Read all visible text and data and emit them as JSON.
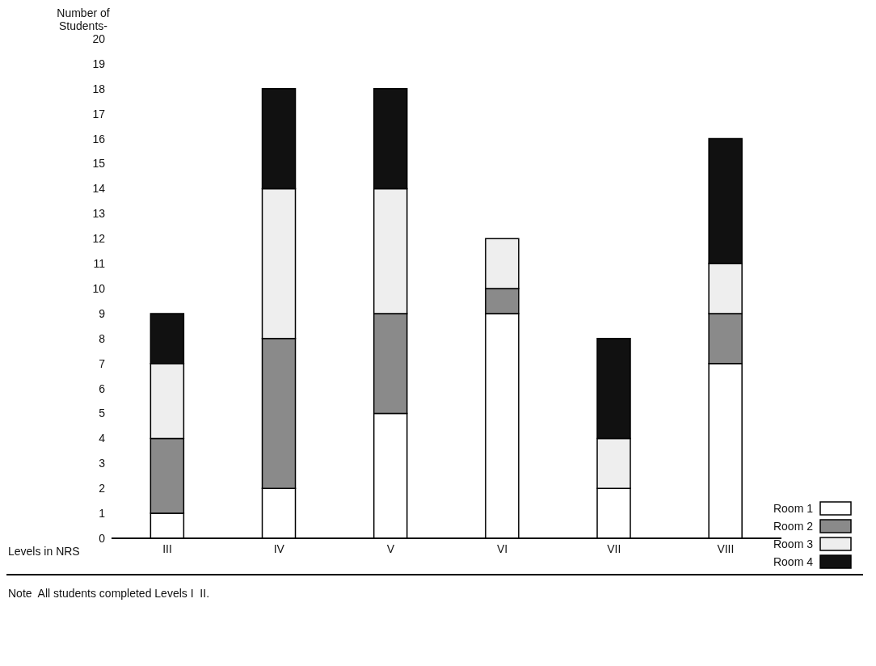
{
  "chart_data": {
    "type": "bar",
    "ylabel": "Number of Students-",
    "xlabel": "Levels in NRS",
    "categories": [
      "III",
      "IV",
      "V",
      "VI",
      "VII",
      "VIII"
    ],
    "stacked": true,
    "series": [
      {
        "name": "Room 1",
        "color": "#ffffff",
        "values": [
          1,
          2,
          5,
          9,
          2,
          7
        ]
      },
      {
        "name": "Room 2",
        "color": "#8a8a8a",
        "values": [
          3,
          6,
          4,
          1,
          0,
          2
        ]
      },
      {
        "name": "Room 3",
        "color": "#eeeeee",
        "values": [
          3,
          6,
          5,
          2,
          2,
          2
        ]
      },
      {
        "name": "Room 4",
        "color": "#111111",
        "values": [
          2,
          4,
          4,
          0,
          4,
          5
        ]
      }
    ],
    "ylim": [
      0,
      20
    ],
    "yticks": [
      0,
      1,
      2,
      3,
      4,
      5,
      6,
      7,
      8,
      9,
      10,
      11,
      12,
      13,
      14,
      15,
      16,
      17,
      18,
      19,
      20
    ],
    "legend": "bottom right",
    "annotations": [
      "Note  All students completed Levels I  II."
    ]
  }
}
